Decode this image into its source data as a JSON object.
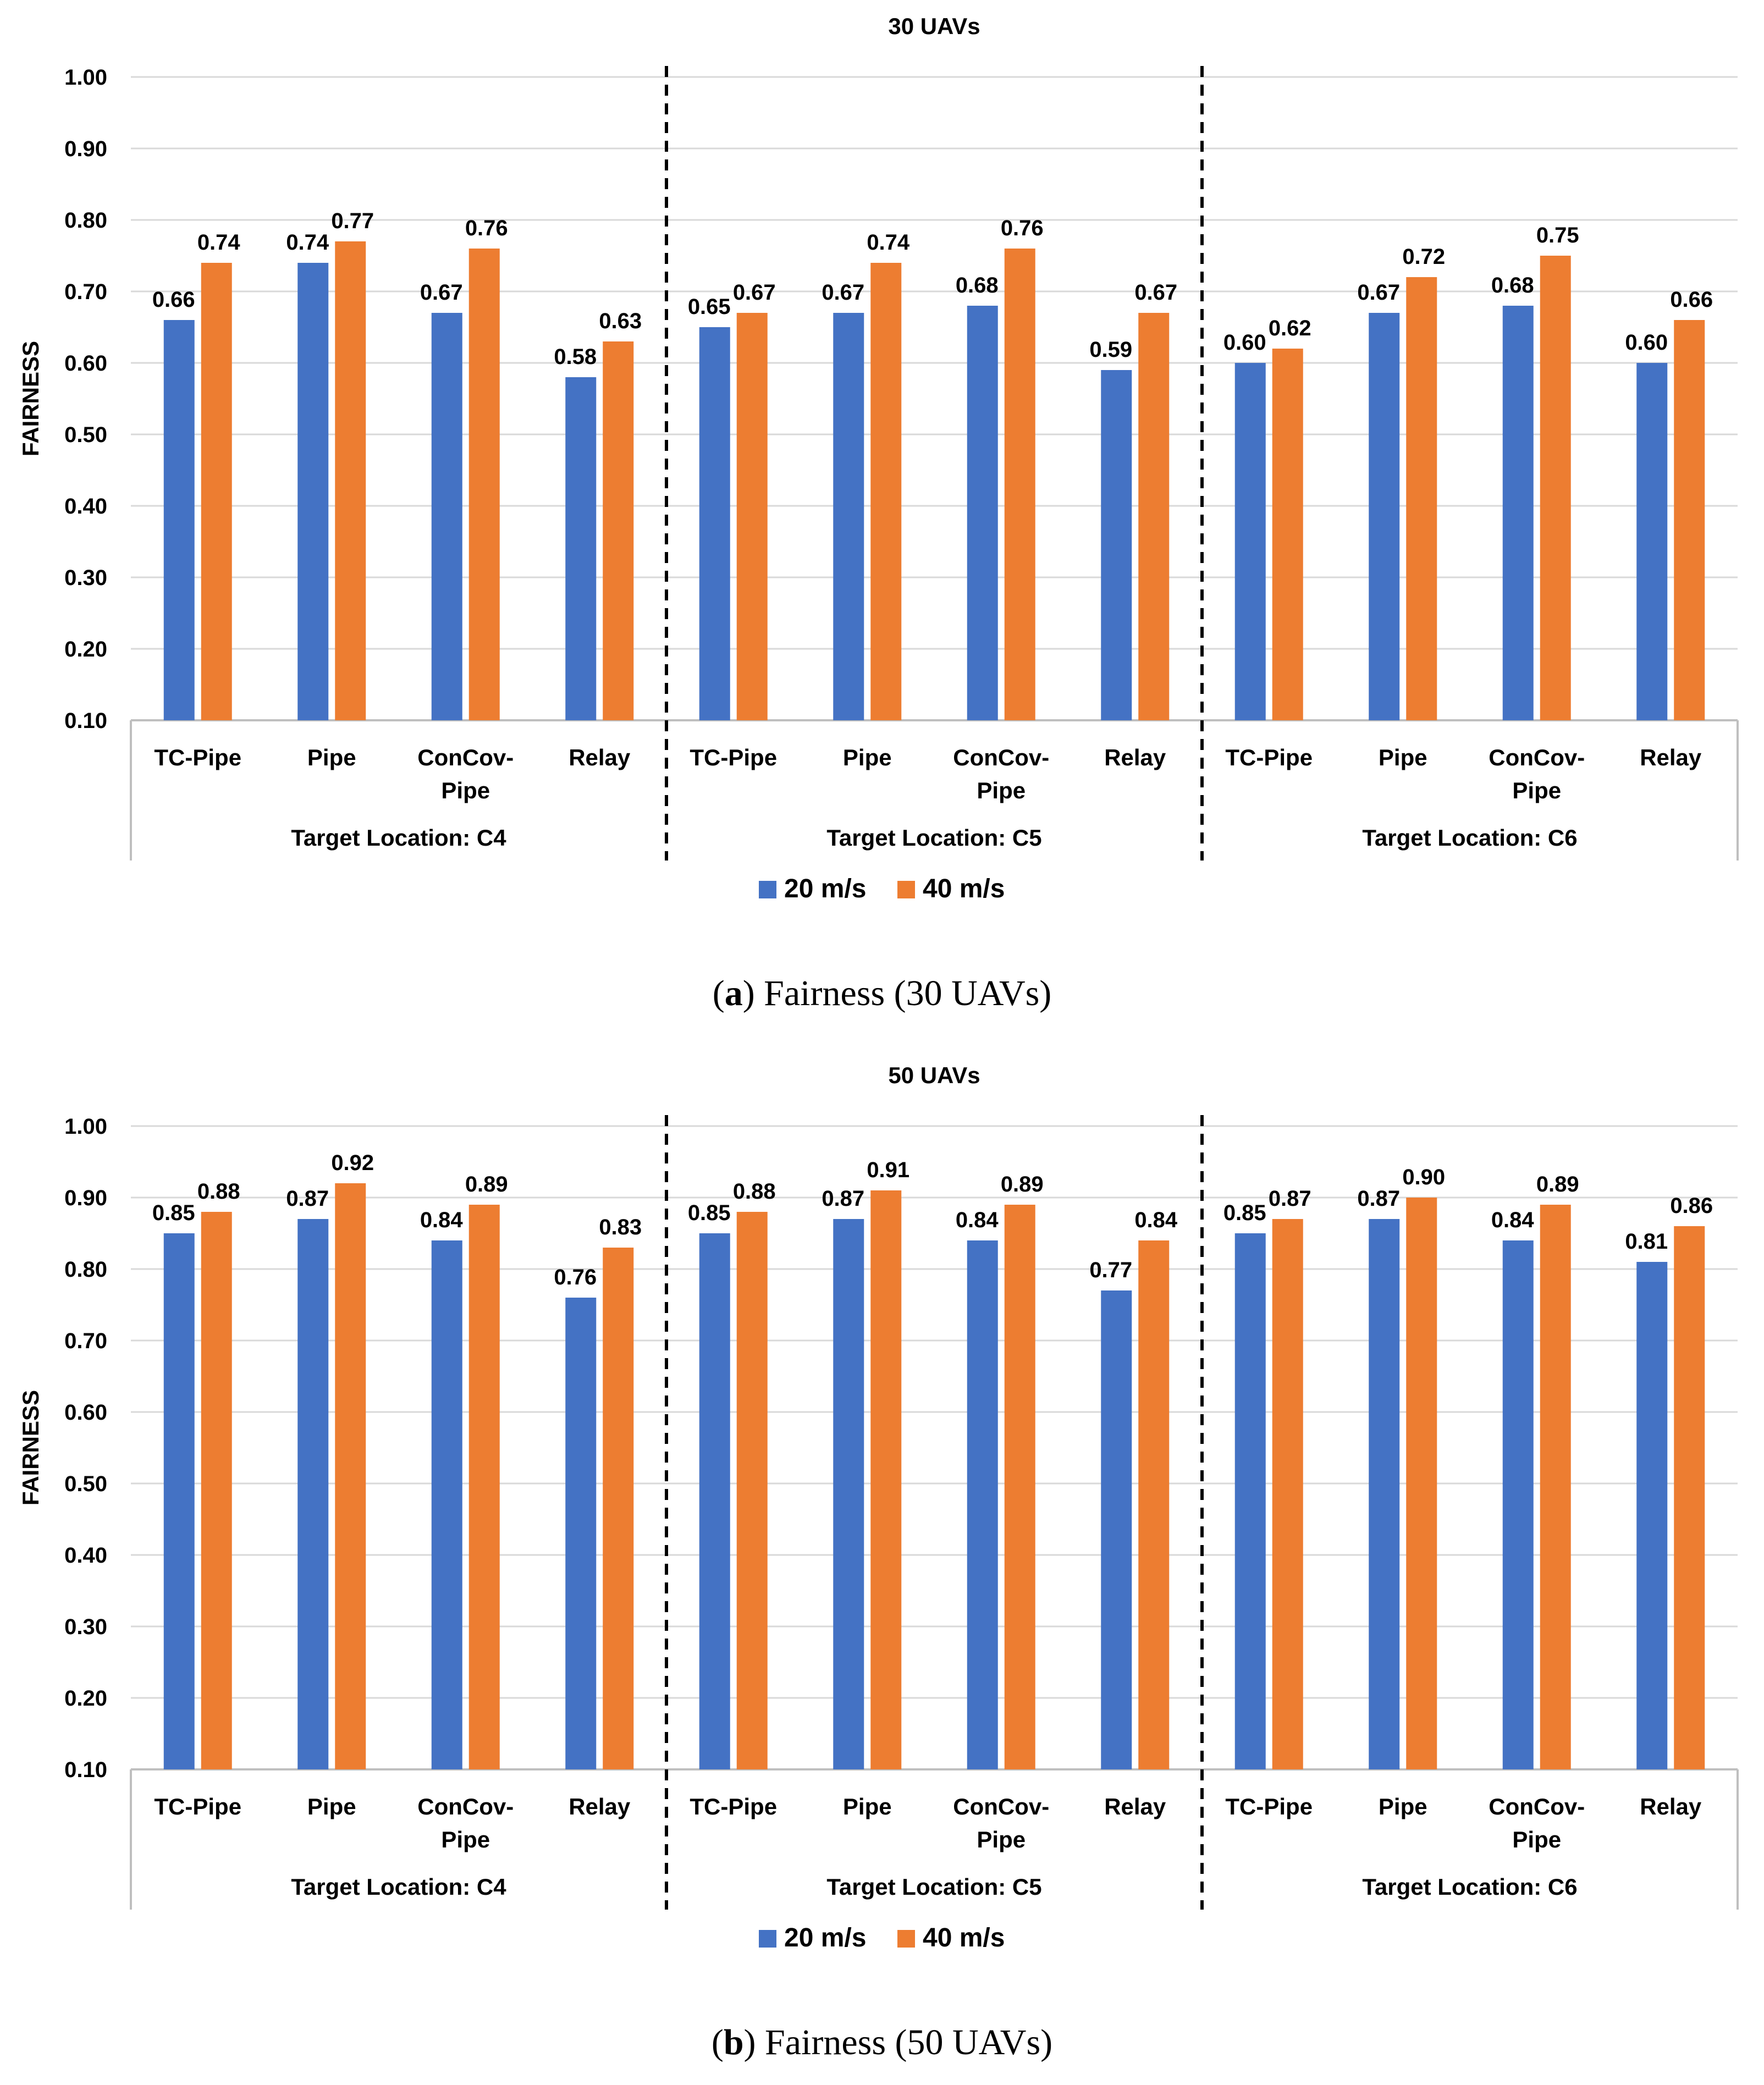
{
  "chart_data": [
    {
      "type": "bar",
      "title": "30 UAVs",
      "caption_letter": "a",
      "caption_text": "Fairness (30 UAVs)",
      "ylabel": "FAIRNESS",
      "ylim": [
        0.1,
        1.0
      ],
      "yticks": [
        "0.10",
        "0.20",
        "0.30",
        "0.40",
        "0.50",
        "0.60",
        "0.70",
        "0.80",
        "0.90",
        "1.00"
      ],
      "groups": [
        {
          "label": "Target Location: C4",
          "categories": [
            "TC-Pipe",
            "Pipe",
            "ConCov-Pipe",
            "Relay"
          ]
        },
        {
          "label": "Target Location: C5",
          "categories": [
            "TC-Pipe",
            "Pipe",
            "ConCov-Pipe",
            "Relay"
          ]
        },
        {
          "label": "Target Location: C6",
          "categories": [
            "TC-Pipe",
            "Pipe",
            "ConCov-Pipe",
            "Relay"
          ]
        }
      ],
      "series": [
        {
          "name": "20 m/s",
          "color": "#4472C4",
          "values": [
            0.66,
            0.74,
            0.67,
            0.58,
            0.65,
            0.67,
            0.68,
            0.59,
            0.6,
            0.67,
            0.68,
            0.6
          ],
          "labels": [
            "0.66",
            "0.74",
            "0.67",
            "0.58",
            "0.65",
            "0.67",
            "0.68",
            "0.59",
            "0.60",
            "0.67",
            "0.68",
            "0.60"
          ]
        },
        {
          "name": "40 m/s",
          "color": "#ED7D31",
          "values": [
            0.74,
            0.77,
            0.76,
            0.63,
            0.67,
            0.74,
            0.76,
            0.67,
            0.62,
            0.72,
            0.75,
            0.66
          ],
          "labels": [
            "0.74",
            "0.77",
            "0.76",
            "0.63",
            "0.67",
            "0.74",
            "0.76",
            "0.67",
            "0.62",
            "0.72",
            "0.75",
            "0.66"
          ]
        }
      ]
    },
    {
      "type": "bar",
      "title": "50 UAVs",
      "caption_letter": "b",
      "caption_text": "Fairness (50 UAVs)",
      "ylabel": "FAIRNESS",
      "ylim": [
        0.1,
        1.0
      ],
      "yticks": [
        "0.10",
        "0.20",
        "0.30",
        "0.40",
        "0.50",
        "0.60",
        "0.70",
        "0.80",
        "0.90",
        "1.00"
      ],
      "groups": [
        {
          "label": "Target Location: C4",
          "categories": [
            "TC-Pipe",
            "Pipe",
            "ConCov-Pipe",
            "Relay"
          ]
        },
        {
          "label": "Target Location: C5",
          "categories": [
            "TC-Pipe",
            "Pipe",
            "ConCov-Pipe",
            "Relay"
          ]
        },
        {
          "label": "Target Location: C6",
          "categories": [
            "TC-Pipe",
            "Pipe",
            "ConCov-Pipe",
            "Relay"
          ]
        }
      ],
      "series": [
        {
          "name": "20 m/s",
          "color": "#4472C4",
          "values": [
            0.85,
            0.87,
            0.84,
            0.76,
            0.85,
            0.87,
            0.84,
            0.77,
            0.85,
            0.87,
            0.84,
            0.81
          ],
          "labels": [
            "0.85",
            "0.87",
            "0.84",
            "0.76",
            "0.85",
            "0.87",
            "0.84",
            "0.77",
            "0.85",
            "0.87",
            "0.84",
            "0.81"
          ]
        },
        {
          "name": "40 m/s",
          "color": "#ED7D31",
          "values": [
            0.88,
            0.92,
            0.89,
            0.83,
            0.88,
            0.91,
            0.89,
            0.84,
            0.87,
            0.9,
            0.89,
            0.86
          ],
          "labels": [
            "0.88",
            "0.92",
            "0.89",
            "0.83",
            "0.88",
            "0.91",
            "0.89",
            "0.84",
            "0.87",
            "0.90",
            "0.89",
            "0.86"
          ]
        }
      ]
    }
  ]
}
